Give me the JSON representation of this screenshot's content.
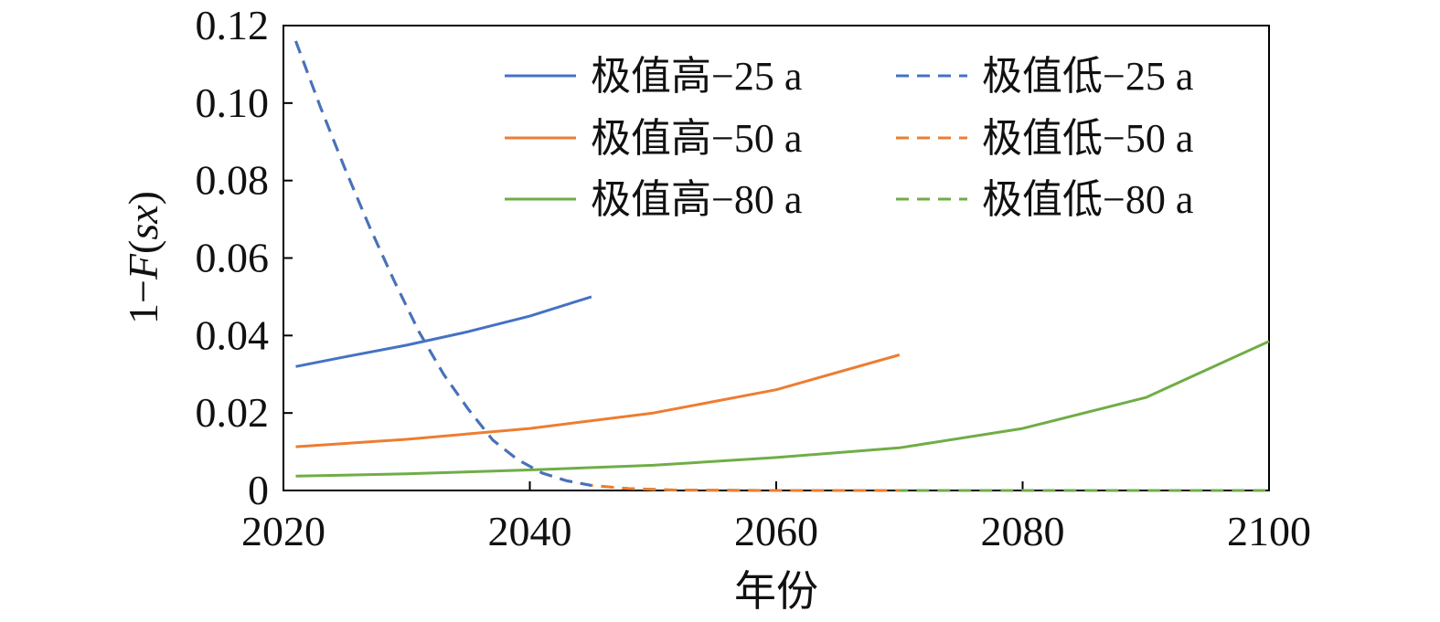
{
  "chart_data": {
    "type": "line",
    "xlabel": "年份",
    "ylabel": "1−F(sx)",
    "ylabel_parts": {
      "prefix": "1−",
      "func": "F",
      "open": "(",
      "arg": "sx",
      "close": ")"
    },
    "xlim": [
      2020,
      2100
    ],
    "ylim": [
      0,
      0.12
    ],
    "xticks": [
      2020,
      2040,
      2060,
      2080,
      2100
    ],
    "xtick_labels": [
      "2020",
      "2040",
      "2060",
      "2080",
      "2100"
    ],
    "yticks": [
      0,
      0.02,
      0.04,
      0.06,
      0.08,
      0.1,
      0.12
    ],
    "ytick_labels": [
      "0",
      "0.02",
      "0.04",
      "0.06",
      "0.08",
      "0.10",
      "0.12"
    ],
    "grid": false,
    "legend_position": "top-right",
    "colors": {
      "blue": "#4472c4",
      "orange": "#ed7d31",
      "green": "#70ad47"
    },
    "series": [
      {
        "name": "极值高−25 a",
        "color": "#4472c4",
        "dash": "solid",
        "x": [
          2021,
          2025,
          2030,
          2035,
          2040,
          2045
        ],
        "y": [
          0.032,
          0.0345,
          0.0375,
          0.041,
          0.045,
          0.05
        ]
      },
      {
        "name": "极值低−25 a",
        "color": "#4472c4",
        "dash": "dashed",
        "x": [
          2021,
          2023,
          2025,
          2027,
          2029,
          2031,
          2033,
          2035,
          2037,
          2039,
          2041,
          2043,
          2045
        ],
        "y": [
          0.116,
          0.099,
          0.083,
          0.068,
          0.054,
          0.041,
          0.03,
          0.021,
          0.013,
          0.008,
          0.0045,
          0.0025,
          0.0013
        ]
      },
      {
        "name": "极值高−50 a",
        "color": "#ed7d31",
        "dash": "solid",
        "x": [
          2021,
          2030,
          2040,
          2050,
          2060,
          2070
        ],
        "y": [
          0.0113,
          0.0132,
          0.016,
          0.02,
          0.026,
          0.035
        ]
      },
      {
        "name": "极值低−50 a",
        "color": "#ed7d31",
        "dash": "dashed",
        "x": [
          2021,
          2023,
          2025,
          2027,
          2029,
          2031,
          2033,
          2035,
          2037,
          2039,
          2041,
          2043,
          2045,
          2048,
          2052,
          2060,
          2070
        ],
        "y": [
          0.116,
          0.099,
          0.083,
          0.068,
          0.054,
          0.041,
          0.03,
          0.021,
          0.013,
          0.008,
          0.0045,
          0.0025,
          0.0013,
          0.0005,
          0.0001,
          0,
          0
        ]
      },
      {
        "name": "极值高−80 a",
        "color": "#70ad47",
        "dash": "solid",
        "x": [
          2021,
          2030,
          2040,
          2050,
          2060,
          2070,
          2080,
          2090,
          2100
        ],
        "y": [
          0.0037,
          0.0043,
          0.0053,
          0.0065,
          0.0085,
          0.011,
          0.016,
          0.024,
          0.0385
        ]
      },
      {
        "name": "极值低−80 a",
        "color": "#70ad47",
        "dash": "dashed",
        "x": [
          2021,
          2023,
          2025,
          2027,
          2029,
          2031,
          2033,
          2035,
          2037,
          2039,
          2041,
          2043,
          2045,
          2048,
          2052,
          2060,
          2070,
          2080,
          2090,
          2100
        ],
        "y": [
          0.116,
          0.099,
          0.083,
          0.068,
          0.054,
          0.041,
          0.03,
          0.021,
          0.013,
          0.008,
          0.0045,
          0.0025,
          0.0013,
          0.0005,
          0.0001,
          0,
          0,
          0,
          0,
          0
        ]
      }
    ]
  }
}
